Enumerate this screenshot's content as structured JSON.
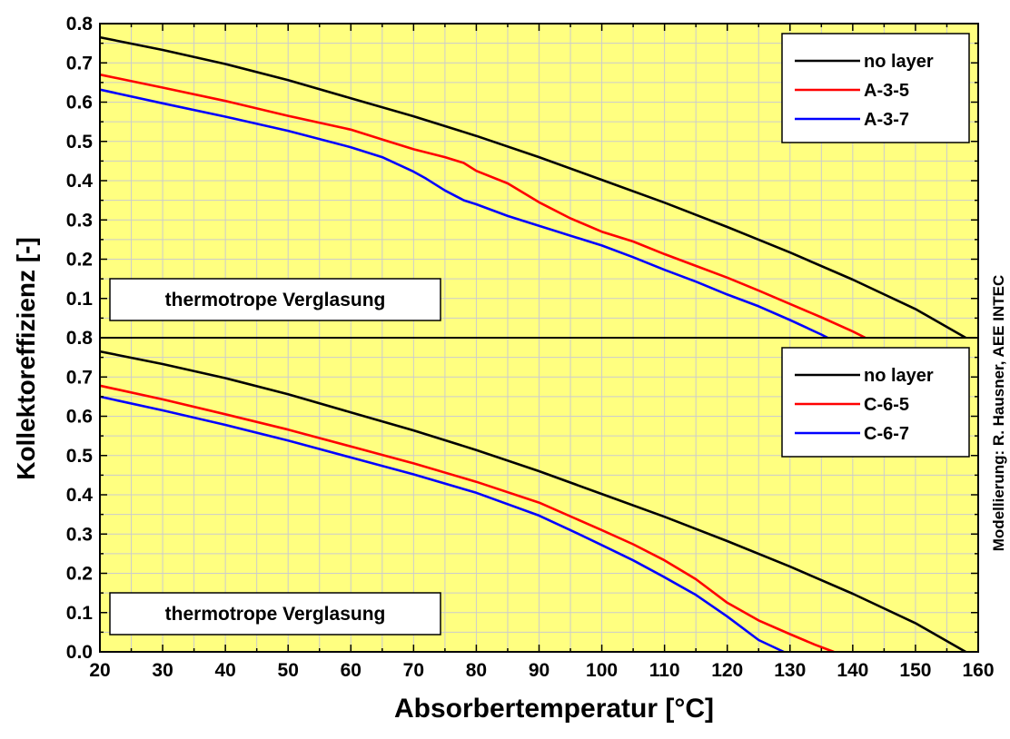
{
  "chart_data": [
    {
      "type": "line",
      "annotation": "thermotrope Verglasung",
      "ylim": [
        0,
        0.8
      ],
      "xlim": [
        20,
        160
      ],
      "grid": true,
      "legend_placement": "top-right",
      "series": [
        {
          "name": "no layer",
          "color": "#000000",
          "x": [
            20,
            30,
            40,
            50,
            60,
            70,
            80,
            90,
            100,
            110,
            120,
            130,
            140,
            150,
            158
          ],
          "y": [
            0.765,
            0.733,
            0.697,
            0.656,
            0.61,
            0.564,
            0.514,
            0.46,
            0.402,
            0.344,
            0.282,
            0.217,
            0.148,
            0.073,
            0.0
          ]
        },
        {
          "name": "A-3-5",
          "color": "#ff0000",
          "x": [
            20,
            30,
            40,
            50,
            60,
            65,
            70,
            75,
            78,
            80,
            85,
            90,
            95,
            100,
            105,
            110,
            115,
            120,
            125,
            130,
            135,
            140,
            142
          ],
          "y": [
            0.67,
            0.637,
            0.603,
            0.565,
            0.53,
            0.505,
            0.48,
            0.46,
            0.445,
            0.425,
            0.393,
            0.345,
            0.304,
            0.27,
            0.245,
            0.213,
            0.183,
            0.153,
            0.12,
            0.086,
            0.052,
            0.016,
            0.0
          ]
        },
        {
          "name": "A-3-7",
          "color": "#0000ff",
          "x": [
            20,
            30,
            40,
            50,
            60,
            65,
            70,
            72,
            75,
            78,
            80,
            85,
            90,
            95,
            100,
            105,
            110,
            115,
            120,
            125,
            130,
            135,
            136
          ],
          "y": [
            0.632,
            0.597,
            0.563,
            0.527,
            0.485,
            0.46,
            0.423,
            0.405,
            0.375,
            0.35,
            0.34,
            0.31,
            0.285,
            0.26,
            0.235,
            0.205,
            0.173,
            0.143,
            0.11,
            0.08,
            0.045,
            0.008,
            0.0
          ]
        }
      ]
    },
    {
      "type": "line",
      "annotation": "thermotrope Verglasung",
      "ylim": [
        0,
        0.8
      ],
      "xlim": [
        20,
        160
      ],
      "xlabel": "Absorbertemperatur [°C]",
      "grid": true,
      "legend_placement": "top-right",
      "series": [
        {
          "name": "no layer",
          "color": "#000000",
          "x": [
            20,
            30,
            40,
            50,
            60,
            70,
            80,
            90,
            100,
            110,
            120,
            130,
            140,
            150,
            158
          ],
          "y": [
            0.765,
            0.733,
            0.697,
            0.656,
            0.61,
            0.564,
            0.514,
            0.46,
            0.402,
            0.344,
            0.282,
            0.217,
            0.148,
            0.073,
            0.0
          ]
        },
        {
          "name": "C-6-5",
          "color": "#ff0000",
          "x": [
            20,
            30,
            40,
            50,
            60,
            70,
            80,
            90,
            100,
            105,
            110,
            115,
            120,
            125,
            130,
            134,
            137
          ],
          "y": [
            0.678,
            0.643,
            0.605,
            0.566,
            0.523,
            0.48,
            0.433,
            0.38,
            0.31,
            0.274,
            0.233,
            0.185,
            0.125,
            0.08,
            0.045,
            0.018,
            0.0
          ]
        },
        {
          "name": "C-6-7",
          "color": "#0000ff",
          "x": [
            20,
            30,
            40,
            50,
            60,
            70,
            80,
            90,
            95,
            100,
            105,
            110,
            115,
            120,
            125,
            129
          ],
          "y": [
            0.65,
            0.615,
            0.578,
            0.538,
            0.495,
            0.452,
            0.405,
            0.347,
            0.31,
            0.272,
            0.233,
            0.19,
            0.145,
            0.09,
            0.03,
            0.0
          ]
        }
      ]
    }
  ],
  "ylabel": "Kollektoreffizienz [-]",
  "xlabel": "Absorbertemperatur [°C]",
  "x_ticks": [
    "20",
    "30",
    "40",
    "50",
    "60",
    "70",
    "80",
    "90",
    "100",
    "110",
    "120",
    "130",
    "140",
    "150",
    "160"
  ],
  "y_ticks_top": [
    "0.1",
    "0.2",
    "0.3",
    "0.4",
    "0.5",
    "0.6",
    "0.7",
    "0.8"
  ],
  "y_ticks_bottom": [
    "0.0",
    "0.1",
    "0.2",
    "0.3",
    "0.4",
    "0.5",
    "0.6",
    "0.7",
    "0.8"
  ],
  "credit": "Modellierung: R. Hausner, AEE INTEC",
  "colors": {
    "plot_background": "#ffff80",
    "grid": "#cccccc"
  }
}
